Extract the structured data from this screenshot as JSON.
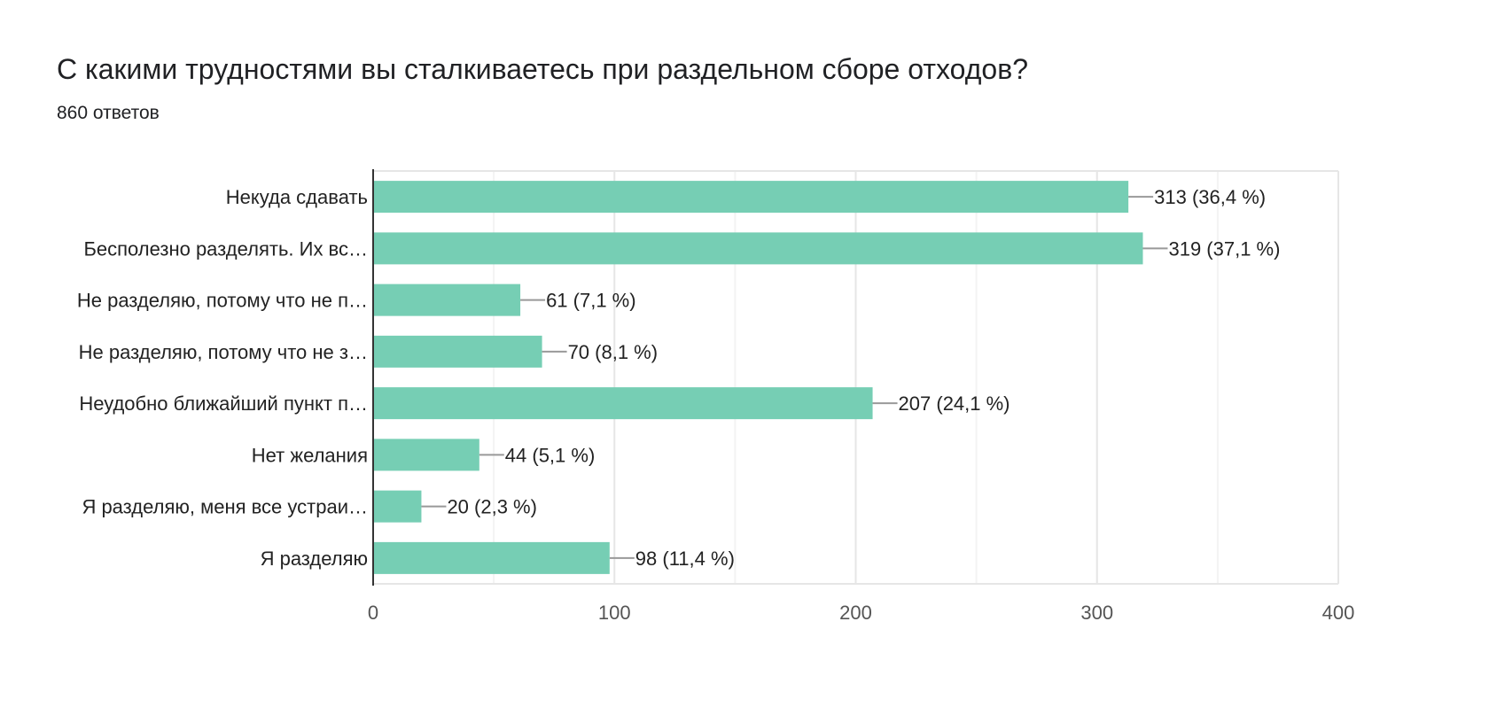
{
  "chart_data": {
    "type": "bar",
    "orientation": "horizontal",
    "title": "С какими трудностями вы сталкиваетесь при раздельном сборе отходов?",
    "subtitle": "860 ответов",
    "categories": [
      "Некуда сдавать",
      "Бесполезно разделять. Их вс…",
      "Не разделяю, потому что не п…",
      "Не разделяю, потому что не з…",
      "Неудобно ближайший пункт п…",
      "Нет желания",
      "Я разделяю, меня все устраи…",
      "Я разделяю"
    ],
    "values": [
      313,
      319,
      61,
      70,
      207,
      44,
      20,
      98
    ],
    "data_labels": [
      "313 (36,4 %)",
      "319 (37,1 %)",
      "61 (7,1 %)",
      "70 (8,1 %)",
      "207 (24,1 %)",
      "44 (5,1 %)",
      "20 (2,3 %)",
      "98 (11,4 %)"
    ],
    "xlim": [
      0,
      400
    ],
    "xticks": [
      "0",
      "100",
      "200",
      "300",
      "400"
    ],
    "grid": true,
    "color": "#76ceb4"
  }
}
